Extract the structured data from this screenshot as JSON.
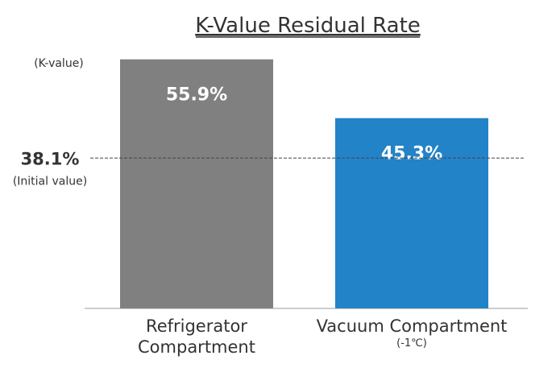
{
  "chart_data": {
    "type": "bar",
    "title": "K-Value Residual Rate",
    "y_label": "(K-value)",
    "categories": [
      "Refrigerator Compartment",
      "Vacuum Compartment"
    ],
    "category_note": "(-1℃)",
    "series": [
      {
        "name": "K-value",
        "colors": [
          "#808080",
          "#2383c8"
        ],
        "values": [
          55.9,
          45.3
        ],
        "value_labels": [
          "55.9%",
          "45.3%"
        ]
      }
    ],
    "ylim": [
      11,
      56
    ],
    "reference": {
      "value": 38.1,
      "label": "38.1%",
      "note": "(Initial value)"
    }
  }
}
